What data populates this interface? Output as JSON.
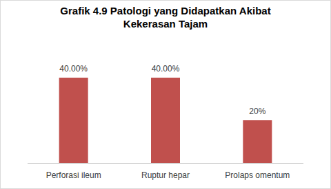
{
  "chart_data": {
    "type": "bar",
    "title": "Grafik 4.9 Patologi yang Didapatkan Akibat Kekerasan Tajam",
    "categories": [
      "Perforasi ileum",
      "Ruptur hepar",
      "Prolaps omentum"
    ],
    "values": [
      40,
      40,
      20
    ],
    "value_labels": [
      "40.00%",
      "40.00%",
      "20%"
    ],
    "color": "#c0504d",
    "ylim": [
      0,
      45
    ],
    "data_labels": true,
    "tick_labels": "x",
    "grid": false
  }
}
